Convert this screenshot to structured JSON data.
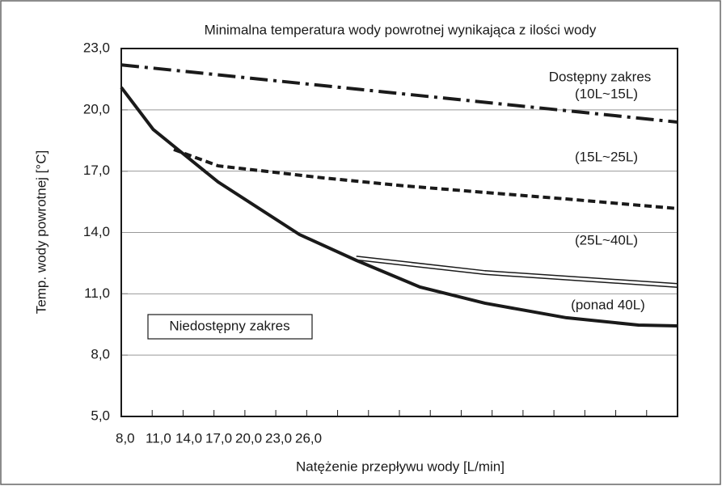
{
  "chart_data": {
    "type": "line",
    "title": "Minimalna temperatura wody powrotnej wynikająca z ilości wody",
    "x_label": "Natężenie przepływu wody [L/min]",
    "y_label": "Temp. wody powrotnej [°C]",
    "annotations": [
      "Dostępny zakres",
      "Niedostępny zakres"
    ],
    "xlim": [
      8,
      62
    ],
    "ylim": [
      5,
      23
    ],
    "xticks": [
      {
        "value": 8,
        "label": "8,0"
      },
      {
        "value": 11,
        "label": "11,0"
      },
      {
        "value": 14,
        "label": "14,0"
      },
      {
        "value": 17,
        "label": "17,0"
      },
      {
        "value": 20,
        "label": "20,0"
      },
      {
        "value": 23,
        "label": "23,0"
      },
      {
        "value": 26,
        "label": "26,0"
      },
      {
        "value": 29,
        "label": null
      },
      {
        "value": 32,
        "label": null
      },
      {
        "value": 35,
        "label": null
      },
      {
        "value": 38,
        "label": null
      },
      {
        "value": 41,
        "label": null
      },
      {
        "value": 44,
        "label": null
      },
      {
        "value": 47,
        "label": null
      },
      {
        "value": 50,
        "label": null
      },
      {
        "value": 53,
        "label": null
      },
      {
        "value": 56,
        "label": null
      },
      {
        "value": 59,
        "label": null
      },
      {
        "value": 62,
        "label": null
      }
    ],
    "yticks": [
      {
        "value": 5,
        "label": "5,0"
      },
      {
        "value": 8,
        "label": "8,0"
      },
      {
        "value": 11,
        "label": "11,0"
      },
      {
        "value": 14,
        "label": "14,0"
      },
      {
        "value": 17,
        "label": "17,0"
      },
      {
        "value": 20,
        "label": "20,0"
      },
      {
        "value": 23,
        "label": "23,0"
      }
    ],
    "grid": true,
    "series": [
      {
        "name": "(10L~15L)",
        "color": "#1a1a1a",
        "style": "dashdot",
        "x": [
          8,
          62
        ],
        "values": [
          22.2,
          19.4
        ]
      },
      {
        "name": "(15L~25L)",
        "color": "#1a1a1a",
        "style": "dash",
        "x": [
          13.1,
          17.4,
          22.1,
          27.6,
          35.5,
          43.3,
          51.2,
          62
        ],
        "values": [
          18.06,
          17.26,
          16.99,
          16.67,
          16.28,
          15.96,
          15.64,
          15.17
        ]
      },
      {
        "name": "(25L~40L)",
        "color": "#1a1a1a",
        "style": "double",
        "x": [
          30.8,
          43.3,
          62
        ],
        "values": [
          12.75,
          12.04,
          11.41
        ]
      },
      {
        "name": "(ponad 40L)",
        "color": "#1a1a1a",
        "style": "solid",
        "x": [
          8,
          11.1,
          13.5,
          17.4,
          25.3,
          30.8,
          37.0,
          43.3,
          51.2,
          58.2,
          62
        ],
        "values": [
          21.1,
          19.04,
          18.06,
          16.47,
          13.9,
          12.64,
          11.33,
          10.54,
          9.83,
          9.47,
          9.43
        ]
      }
    ]
  }
}
